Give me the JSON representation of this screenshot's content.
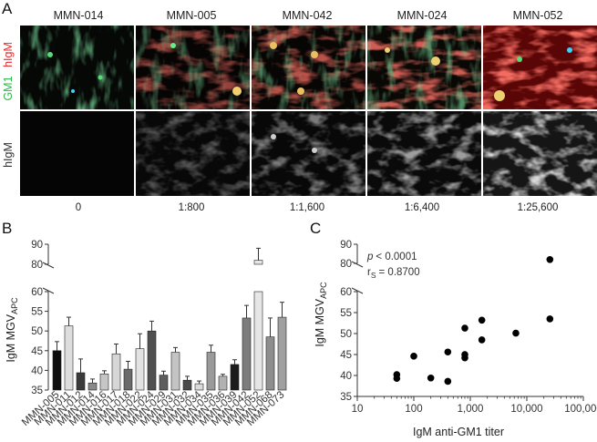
{
  "panel_a": {
    "label": "A",
    "columns": [
      "MMN-014",
      "MMN-005",
      "MMN-042",
      "MMN-024",
      "MMN-052"
    ],
    "titers": [
      "0",
      "1:800",
      "1:1,600",
      "1:6,400",
      "1:25,600"
    ],
    "row_labels": {
      "top_red": "hIgM",
      "top_green": "GM1",
      "bottom": "hIgM"
    },
    "colors": {
      "red": "#e03030",
      "green": "#2fb84a"
    }
  },
  "chart_data": [
    {
      "type": "bar",
      "panel_label": "B",
      "ylabel": "IgM MGV",
      "ylabel_sub": "APC",
      "ylim_lower": [
        35,
        60
      ],
      "ylim_upper": [
        80,
        90
      ],
      "yticks": [
        35,
        40,
        45,
        50,
        55,
        60,
        80,
        90
      ],
      "categories": [
        "MMN-005",
        "MMN-011",
        "MMN-012",
        "MMN-014",
        "MMN-016",
        "MMN-017",
        "MMN-018",
        "MMN-022",
        "MMN-024",
        "MMN-029",
        "MMN-031",
        "MMN-032",
        "MMN-034",
        "MMN-035",
        "MMN-036",
        "MMN-039",
        "MMN-042",
        "MMN-052",
        "MMN-068",
        "MMN-073"
      ],
      "values": [
        45.0,
        51.3,
        39.4,
        36.8,
        39.1,
        44.2,
        40.3,
        45.5,
        50.0,
        38.8,
        44.6,
        37.5,
        36.6,
        44.6,
        38.5,
        41.5,
        53.3,
        82.0,
        48.5,
        53.5
      ],
      "errors": [
        2.3,
        2.2,
        3.5,
        1.0,
        0.8,
        2.5,
        2.0,
        3.8,
        2.5,
        1.0,
        1.2,
        1.0,
        0.7,
        1.8,
        0.5,
        1.2,
        3.2,
        6.0,
        4.8,
        3.8
      ],
      "bar_colors": [
        "#0d0d0d",
        "#dedede",
        "#3a3a3a",
        "#8a8a8a",
        "#c6c6c6",
        "#d6d6d6",
        "#6a6a6a",
        "#e2e2e2",
        "#505050",
        "#5d5d5d",
        "#c4c4c4",
        "#4a4a4a",
        "#dadada",
        "#9a9a9a",
        "#b2b2b2",
        "#1c1c1c",
        "#7d7d7d",
        "#e6e6e6",
        "#8e8e8e",
        "#a0a0a0"
      ]
    },
    {
      "type": "scatter",
      "panel_label": "C",
      "xlabel": "IgM anti-GM1 titer",
      "ylabel": "IgM MGV",
      "ylabel_sub": "APC",
      "xscale": "log",
      "xlim": [
        10,
        100000
      ],
      "xticks": [
        "10",
        "100",
        "1,000",
        "10,000",
        "100,000"
      ],
      "ylim_lower": [
        35,
        60
      ],
      "ylim_upper": [
        80,
        90
      ],
      "yticks": [
        35,
        40,
        45,
        50,
        55,
        60,
        80,
        90
      ],
      "annotation_p_label": "p",
      "annotation_p_value": "< 0.0001",
      "annotation_r_label": "r",
      "annotation_r_sub": "S",
      "annotation_r_value": "= 0.8700",
      "points": [
        {
          "x": 50,
          "y": 40.2
        },
        {
          "x": 50,
          "y": 39.3
        },
        {
          "x": 100,
          "y": 44.6
        },
        {
          "x": 200,
          "y": 39.4
        },
        {
          "x": 400,
          "y": 45.6
        },
        {
          "x": 400,
          "y": 38.6
        },
        {
          "x": 800,
          "y": 51.3
        },
        {
          "x": 800,
          "y": 45.0
        },
        {
          "x": 800,
          "y": 44.2
        },
        {
          "x": 1600,
          "y": 53.2
        },
        {
          "x": 1600,
          "y": 48.5
        },
        {
          "x": 6400,
          "y": 50.1
        },
        {
          "x": 25600,
          "y": 82.0
        },
        {
          "x": 25600,
          "y": 53.5
        }
      ]
    }
  ]
}
